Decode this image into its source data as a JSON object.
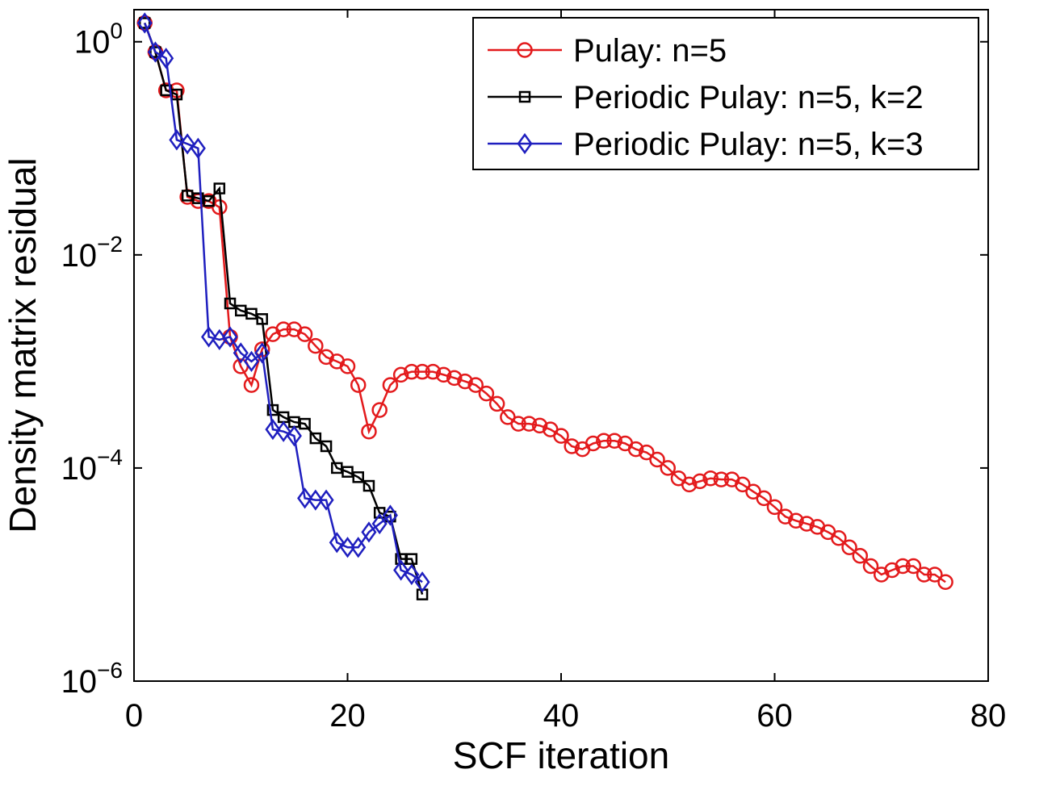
{
  "chart_data": {
    "type": "line",
    "xlabel": "SCF iteration",
    "ylabel": "Density matrix residual",
    "xlim": [
      0,
      80
    ],
    "ylim": [
      1e-06,
      2
    ],
    "yscale": "log",
    "xticks": [
      0,
      20,
      40,
      60,
      80
    ],
    "xtick_labels": [
      "0",
      "20",
      "40",
      "60",
      "80"
    ],
    "yticks": [
      {
        "value": 1,
        "base": "10",
        "exp": "0"
      },
      {
        "value": 0.01,
        "base": "10",
        "exp": "−2"
      },
      {
        "value": 0.0001,
        "base": "10",
        "exp": "−4"
      },
      {
        "value": 1e-06,
        "base": "10",
        "exp": "−6"
      }
    ],
    "legend_position": "top-right",
    "series": [
      {
        "name": "Pulay: n=5",
        "color": "#e31a1c",
        "marker": "circle",
        "x": [
          1,
          2,
          3,
          4,
          5,
          6,
          7,
          8,
          9,
          10,
          11,
          12,
          13,
          14,
          15,
          16,
          17,
          18,
          19,
          20,
          21,
          22,
          23,
          24,
          25,
          26,
          27,
          28,
          29,
          30,
          31,
          32,
          33,
          34,
          35,
          36,
          37,
          38,
          39,
          40,
          41,
          42,
          43,
          44,
          45,
          46,
          47,
          48,
          49,
          50,
          51,
          52,
          53,
          54,
          55,
          56,
          57,
          58,
          59,
          60,
          61,
          62,
          63,
          64,
          65,
          66,
          67,
          68,
          69,
          70,
          71,
          72,
          73,
          74,
          75,
          76
        ],
        "y": [
          1.5,
          0.8,
          0.35,
          0.35,
          0.035,
          0.032,
          0.032,
          0.028,
          0.0017,
          0.0009,
          0.0006,
          0.0013,
          0.0018,
          0.002,
          0.002,
          0.0018,
          0.0014,
          0.0011,
          0.001,
          0.0009,
          0.0006,
          0.00022,
          0.00035,
          0.0006,
          0.00075,
          0.0008,
          0.0008,
          0.0008,
          0.00075,
          0.0007,
          0.00065,
          0.0006,
          0.0005,
          0.0004,
          0.0003,
          0.00026,
          0.00026,
          0.00025,
          0.00023,
          0.0002,
          0.00016,
          0.00015,
          0.00017,
          0.00018,
          0.00018,
          0.00017,
          0.00015,
          0.00014,
          0.00012,
          0.0001,
          8e-05,
          7e-05,
          7.5e-05,
          8e-05,
          7.8e-05,
          7.8e-05,
          7e-05,
          6e-05,
          5.2e-05,
          4.3e-05,
          3.5e-05,
          3.2e-05,
          3e-05,
          2.8e-05,
          2.5e-05,
          2.2e-05,
          1.8e-05,
          1.5e-05,
          1.2e-05,
          1e-05,
          1.1e-05,
          1.2e-05,
          1.2e-05,
          1e-05,
          1e-05,
          8.5e-06
        ]
      },
      {
        "name": "Periodic Pulay: n=5, k=2",
        "color": "#000000",
        "marker": "square",
        "x": [
          1,
          2,
          3,
          4,
          5,
          6,
          7,
          8,
          9,
          10,
          11,
          12,
          13,
          14,
          15,
          16,
          17,
          18,
          19,
          20,
          21,
          22,
          23,
          24,
          25,
          26,
          27
        ],
        "y": [
          1.5,
          0.8,
          0.35,
          0.32,
          0.036,
          0.034,
          0.032,
          0.042,
          0.0035,
          0.003,
          0.0028,
          0.0025,
          0.00035,
          0.0003,
          0.00027,
          0.00026,
          0.00019,
          0.00016,
          0.0001,
          9.2e-05,
          8.2e-05,
          6.8e-05,
          3.8e-05,
          3.5e-05,
          1.4e-05,
          1.4e-05,
          6.5e-06
        ]
      },
      {
        "name": "Periodic Pulay: n=5, k=3",
        "color": "#1f1fbf",
        "marker": "diamond",
        "x": [
          1,
          2,
          3,
          4,
          5,
          6,
          7,
          8,
          9,
          10,
          11,
          12,
          13,
          14,
          15,
          16,
          17,
          18,
          19,
          20,
          21,
          22,
          23,
          24,
          25,
          26,
          27
        ],
        "y": [
          1.5,
          0.8,
          0.7,
          0.12,
          0.11,
          0.1,
          0.0017,
          0.0016,
          0.0017,
          0.0012,
          0.001,
          0.0012,
          0.00023,
          0.00022,
          0.0002,
          5.2e-05,
          5e-05,
          5e-05,
          2e-05,
          1.8e-05,
          1.8e-05,
          2.5e-05,
          3e-05,
          3.6e-05,
          1.1e-05,
          1e-05,
          8.5e-06
        ]
      }
    ]
  }
}
